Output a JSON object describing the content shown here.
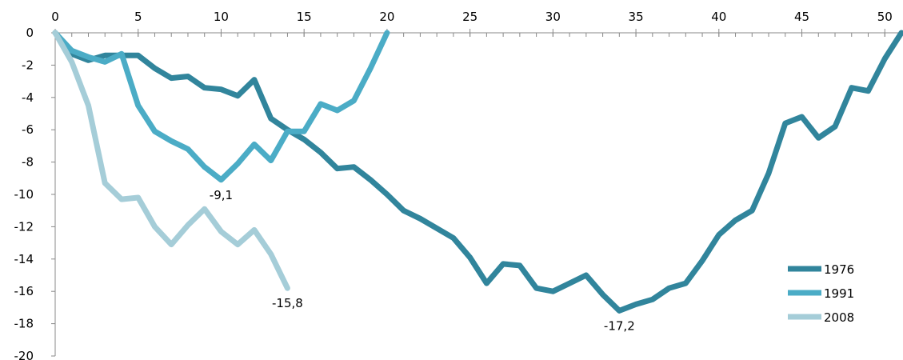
{
  "chart_data": {
    "type": "line",
    "title": "",
    "xlabel": "",
    "ylabel": "",
    "xlim": [
      0,
      51
    ],
    "ylim": [
      -20,
      0
    ],
    "x_ticks": [
      0,
      5,
      10,
      15,
      20,
      25,
      30,
      35,
      40,
      45,
      50
    ],
    "y_ticks": [
      0,
      -2,
      -4,
      -6,
      -8,
      -10,
      -12,
      -14,
      -16,
      -18,
      -20
    ],
    "x_tick_labels": [
      "0",
      "5",
      "10",
      "15",
      "20",
      "25",
      "30",
      "35",
      "40",
      "45",
      "50"
    ],
    "y_tick_labels": [
      "0",
      "-2",
      "-4",
      "-6",
      "-8",
      "-10",
      "-12",
      "-14",
      "-16",
      "-18",
      "-20"
    ],
    "x_axis_position": "top",
    "grid": false,
    "legend_position": "bottom-right",
    "series": [
      {
        "name": "1976",
        "color": "#31859C",
        "x": [
          0,
          1,
          2,
          3,
          4,
          5,
          6,
          7,
          8,
          9,
          10,
          11,
          12,
          13,
          14,
          15,
          16,
          17,
          18,
          19,
          20,
          21,
          22,
          23,
          24,
          25,
          26,
          27,
          28,
          29,
          30,
          31,
          32,
          33,
          34,
          35,
          36,
          37,
          38,
          39,
          40,
          41,
          42,
          43,
          44,
          45,
          46,
          47,
          48,
          49,
          50,
          51
        ],
        "values": [
          0,
          -1.3,
          -1.7,
          -1.4,
          -1.4,
          -1.4,
          -2.2,
          -2.8,
          -2.7,
          -3.4,
          -3.5,
          -3.9,
          -2.9,
          -5.3,
          -6.0,
          -6.6,
          -7.4,
          -8.4,
          -8.3,
          -9.1,
          -10.0,
          -11.0,
          -11.5,
          -12.1,
          -12.7,
          -13.9,
          -15.5,
          -14.3,
          -14.4,
          -15.8,
          -16.0,
          -15.5,
          -15.0,
          -16.2,
          -17.2,
          -16.8,
          -16.5,
          -15.8,
          -15.5,
          -14.1,
          -12.5,
          -11.6,
          -11.0,
          -8.7,
          -5.6,
          -5.2,
          -6.5,
          -5.8,
          -3.4,
          -3.6,
          -1.6,
          0.0
        ],
        "labels": [
          {
            "x": 34,
            "text": "-17,2"
          }
        ]
      },
      {
        "name": "1991",
        "color": "#4BACC6",
        "x": [
          0,
          1,
          2,
          3,
          4,
          5,
          6,
          7,
          8,
          9,
          10,
          11,
          12,
          13,
          14,
          15,
          16,
          17,
          18,
          19,
          20
        ],
        "values": [
          0,
          -1.1,
          -1.5,
          -1.8,
          -1.3,
          -4.5,
          -6.1,
          -6.7,
          -7.2,
          -8.3,
          -9.1,
          -8.1,
          -6.9,
          -7.9,
          -6.1,
          -6.1,
          -4.4,
          -4.8,
          -4.2,
          -2.2,
          0.0
        ],
        "labels": [
          {
            "x": 10,
            "text": "-9,1"
          }
        ]
      },
      {
        "name": "2008",
        "color": "#A5CDD8",
        "x": [
          0,
          1,
          2,
          3,
          4,
          5,
          6,
          7,
          8,
          9,
          10,
          11,
          12,
          13,
          14
        ],
        "values": [
          0,
          -1.8,
          -4.5,
          -9.3,
          -10.3,
          -10.2,
          -12.0,
          -13.1,
          -11.9,
          -10.9,
          -12.3,
          -13.1,
          -12.2,
          -13.7,
          -15.8
        ],
        "labels": [
          {
            "x": 14,
            "text": "-15,8"
          }
        ]
      }
    ]
  }
}
